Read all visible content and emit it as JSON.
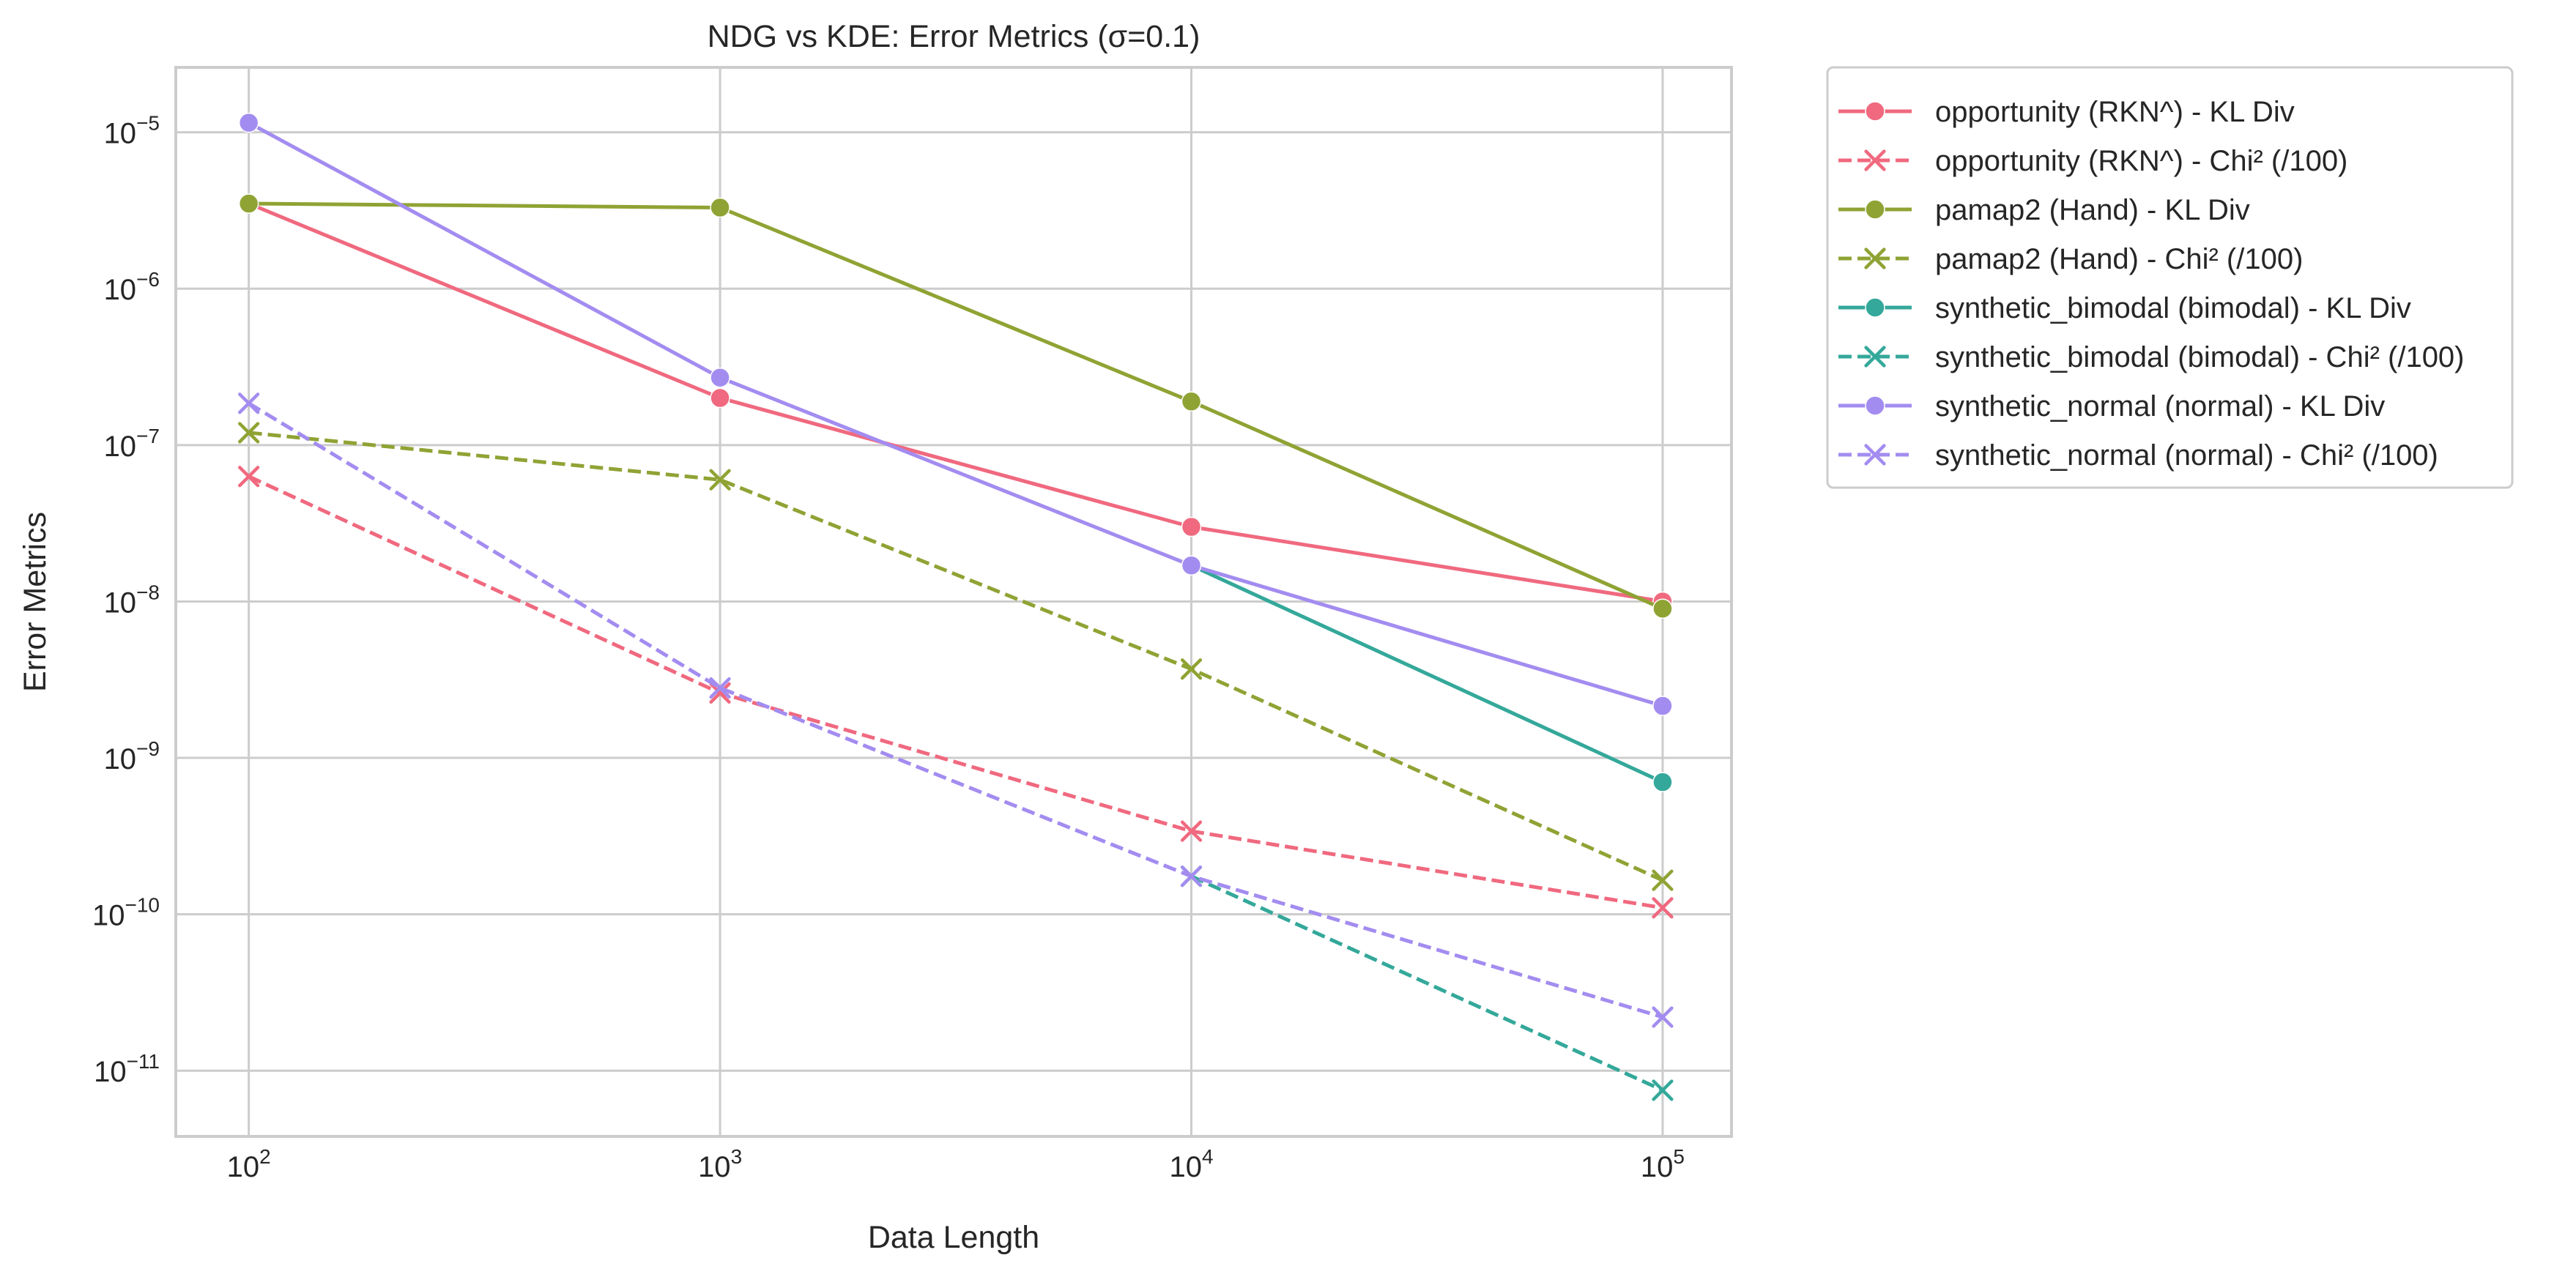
{
  "chart_data": {
    "type": "line",
    "title": "NDG vs KDE: Error Metrics (σ=0.1)",
    "xlabel": "Data Length",
    "ylabel": "Error Metrics",
    "xscale": "log",
    "yscale": "log",
    "xlim": [
      70,
      140000
    ],
    "ylim": [
      3.8e-12,
      2.6e-05
    ],
    "grid": true,
    "legend": "outside-top-right",
    "x_ticks": [
      {
        "value": 100,
        "base": "10",
        "exp": "2"
      },
      {
        "value": 1000,
        "base": "10",
        "exp": "3"
      },
      {
        "value": 10000,
        "base": "10",
        "exp": "4"
      },
      {
        "value": 100000,
        "base": "10",
        "exp": "5"
      }
    ],
    "y_ticks": [
      {
        "value": 1e-11,
        "base": "10",
        "exp": "−11"
      },
      {
        "value": 1e-10,
        "base": "10",
        "exp": "−10"
      },
      {
        "value": 1e-09,
        "base": "10",
        "exp": "−9"
      },
      {
        "value": 1e-08,
        "base": "10",
        "exp": "−8"
      },
      {
        "value": 1e-07,
        "base": "10",
        "exp": "−7"
      },
      {
        "value": 1e-06,
        "base": "10",
        "exp": "−6"
      },
      {
        "value": 1e-05,
        "base": "10",
        "exp": "−5"
      }
    ],
    "x": [
      100,
      1000,
      10000,
      100000
    ],
    "series": [
      {
        "name": "opportunity (RKN^) - KL Div",
        "color": "#f0697f",
        "style": "solid",
        "marker": "circle",
        "values": [
          3.5e-06,
          2e-07,
          3e-08,
          1e-08
        ]
      },
      {
        "name": "opportunity (RKN^) - Chi² (/100)",
        "color": "#f0697f",
        "style": "dashed",
        "marker": "x",
        "values": [
          6.3e-08,
          2.6e-09,
          3.4e-10,
          1.1e-10
        ]
      },
      {
        "name": "pamap2 (Hand) - KL Div",
        "color": "#8fa334",
        "style": "solid",
        "marker": "circle",
        "values": [
          3.5e-06,
          3.3e-06,
          1.9e-07,
          9e-09
        ]
      },
      {
        "name": "pamap2 (Hand) - Chi² (/100)",
        "color": "#8fa334",
        "style": "dashed",
        "marker": "x",
        "values": [
          1.2e-07,
          6e-08,
          3.7e-09,
          1.65e-10
        ]
      },
      {
        "name": "synthetic_bimodal (bimodal) - KL Div",
        "color": "#34a89a",
        "style": "solid",
        "marker": "circle",
        "values": [
          null,
          null,
          1.7e-08,
          7e-10
        ]
      },
      {
        "name": "synthetic_bimodal (bimodal) - Chi² (/100)",
        "color": "#34a89a",
        "style": "dashed",
        "marker": "x",
        "values": [
          null,
          null,
          1.75e-10,
          7.5e-12
        ]
      },
      {
        "name": "synthetic_normal (normal) - KL Div",
        "color": "#a38cf0",
        "style": "solid",
        "marker": "circle",
        "values": [
          1.15e-05,
          2.7e-07,
          1.7e-08,
          2.15e-09
        ]
      },
      {
        "name": "synthetic_normal (normal) - Chi² (/100)",
        "color": "#a38cf0",
        "style": "dashed",
        "marker": "x",
        "values": [
          1.85e-07,
          2.8e-09,
          1.75e-10,
          2.2e-11
        ]
      }
    ]
  }
}
